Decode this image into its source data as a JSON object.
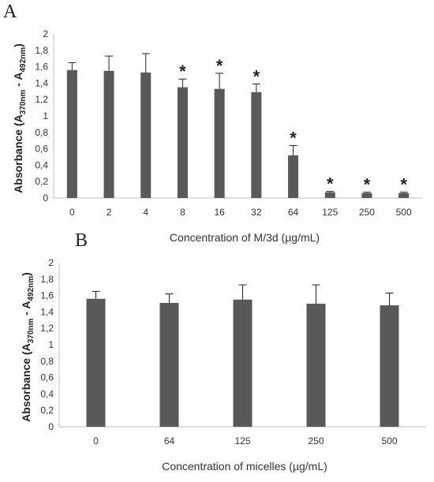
{
  "chart_data": [
    {
      "type": "bar",
      "panel_label": "A",
      "categories": [
        "0",
        "2",
        "4",
        "8",
        "16",
        "32",
        "64",
        "125",
        "250",
        "500"
      ],
      "values": [
        1.56,
        1.55,
        1.53,
        1.35,
        1.33,
        1.29,
        0.52,
        0.07,
        0.06,
        0.06
      ],
      "error": [
        0.09,
        0.18,
        0.23,
        0.1,
        0.19,
        0.1,
        0.12,
        0.01,
        0.01,
        0.01
      ],
      "significant": [
        false,
        false,
        false,
        true,
        true,
        true,
        true,
        true,
        true,
        true
      ],
      "significance_marker": "*",
      "xlabel": "Concentration of M/3d (µg/mL)",
      "ylabel": {
        "main": "Absorbance (A",
        "sub1": "370nm",
        "mid": " - A",
        "sub2": "492nm",
        "end": ")"
      },
      "ylim": [
        0,
        2
      ],
      "yticks": [
        "0",
        "0,2",
        "0,4",
        "0,6",
        "0,8",
        "1",
        "1,2",
        "1,4",
        "1,6",
        "1,8",
        "2"
      ],
      "bar_color": "#595959",
      "grid": false,
      "legend": "none"
    },
    {
      "type": "bar",
      "panel_label": "B",
      "categories": [
        "0",
        "64",
        "125",
        "250",
        "500"
      ],
      "values": [
        1.56,
        1.51,
        1.55,
        1.5,
        1.48
      ],
      "error": [
        0.09,
        0.11,
        0.18,
        0.23,
        0.15
      ],
      "significant": [
        false,
        false,
        false,
        false,
        false
      ],
      "significance_marker": "*",
      "xlabel": "Concentration of micelles (µg/mL)",
      "ylabel": {
        "main": "Absorbance (A",
        "sub1": "370nm",
        "mid": " - A",
        "sub2": "492nm",
        "end": ")"
      },
      "ylim": [
        0,
        2
      ],
      "yticks": [
        "0",
        "0,2",
        "0,4",
        "0,6",
        "0,8",
        "1",
        "1,2",
        "1,4",
        "1,6",
        "1,8",
        "2"
      ],
      "bar_color": "#595959",
      "grid": false,
      "legend": "none"
    }
  ]
}
